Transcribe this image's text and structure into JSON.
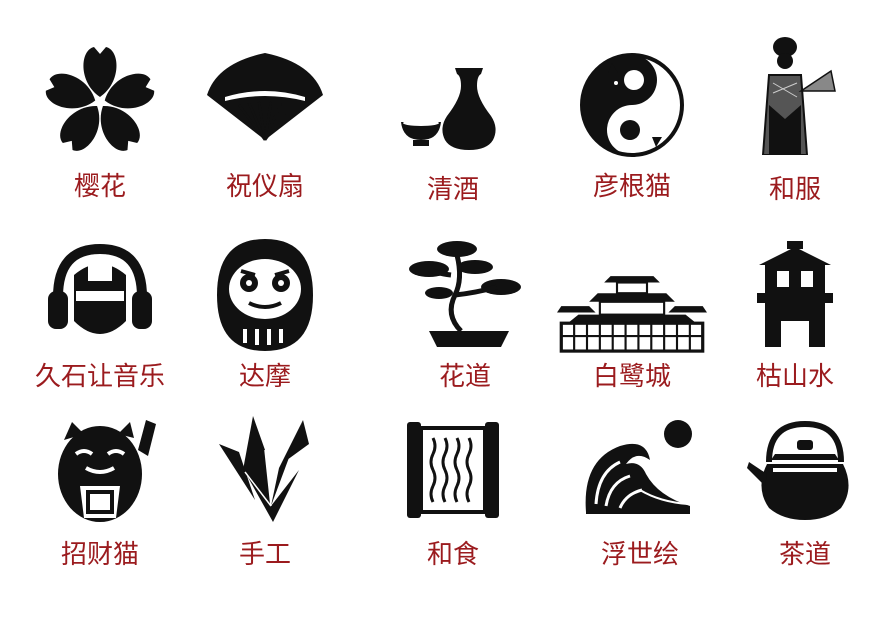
{
  "items": [
    {
      "label": "樱花",
      "icon": "sakura-flower-icon"
    },
    {
      "label": "祝仪扇",
      "icon": "folding-fan-icon"
    },
    {
      "label": "清酒",
      "icon": "sake-bottle-cup-icon"
    },
    {
      "label": "彦根猫",
      "icon": "yin-yang-cats-icon"
    },
    {
      "label": "和服",
      "icon": "kimono-woman-icon"
    },
    {
      "label": "久石让音乐",
      "icon": "headphones-face-icon"
    },
    {
      "label": "达摩",
      "icon": "daruma-doll-icon"
    },
    {
      "label": "花道",
      "icon": "bonsai-tree-icon"
    },
    {
      "label": "白鹭城",
      "icon": "himeji-castle-icon"
    },
    {
      "label": "枯山水",
      "icon": "stone-lantern-icon"
    },
    {
      "label": "招财猫",
      "icon": "lucky-cat-icon"
    },
    {
      "label": "手工",
      "icon": "paper-crane-icon"
    },
    {
      "label": "和食",
      "icon": "scroll-menu-icon"
    },
    {
      "label": "浮世绘",
      "icon": "great-wave-icon"
    },
    {
      "label": "茶道",
      "icon": "iron-teapot-icon"
    }
  ],
  "colors": {
    "label": "#9b1b1e",
    "icon": "#111111"
  }
}
